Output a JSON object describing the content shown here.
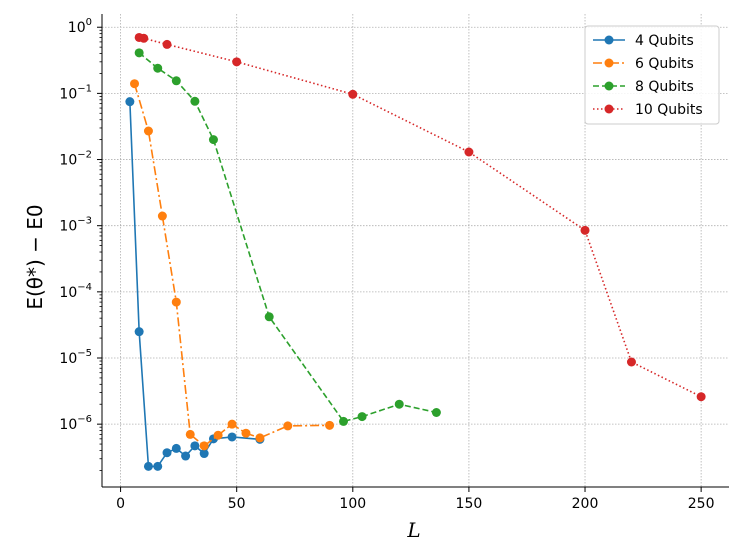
{
  "chart_data": {
    "type": "line",
    "title": "",
    "xlabel": "L",
    "ylabel": "E(θ*) − E0",
    "xlim": [
      -8,
      262
    ],
    "ylim_log10": [
      -6.95,
      0.2
    ],
    "log_y": true,
    "x_ticks": [
      0,
      50,
      100,
      150,
      200,
      250
    ],
    "y_ticks": [
      {
        "exp": 0,
        "base": "10",
        "sup": "0"
      },
      {
        "exp": -1,
        "base": "10",
        "sup": "−1"
      },
      {
        "exp": -2,
        "base": "10",
        "sup": "−2"
      },
      {
        "exp": -3,
        "base": "10",
        "sup": "−3"
      },
      {
        "exp": -4,
        "base": "10",
        "sup": "−4"
      },
      {
        "exp": -5,
        "base": "10",
        "sup": "−5"
      },
      {
        "exp": -6,
        "base": "10",
        "sup": "−6"
      }
    ],
    "grid": true,
    "legend_position": "top-right",
    "series": [
      {
        "name": "4 Qubits",
        "color": "#1f77b4",
        "dash": "solid",
        "x": [
          4,
          8,
          12,
          16,
          20,
          24,
          28,
          32,
          36,
          40,
          48,
          60
        ],
        "y": [
          0.075,
          2.5e-05,
          2.3e-07,
          2.3e-07,
          3.7e-07,
          4.3e-07,
          3.3e-07,
          4.7e-07,
          3.6e-07,
          6e-07,
          6.4e-07,
          5.9e-07
        ]
      },
      {
        "name": "6 Qubits",
        "color": "#ff7f0e",
        "dash": "dashdot",
        "x": [
          6,
          12,
          18,
          24,
          30,
          36,
          42,
          48,
          54,
          60,
          72,
          90
        ],
        "y": [
          0.14,
          0.027,
          0.0014,
          7e-05,
          7e-07,
          4.7e-07,
          6.8e-07,
          1e-06,
          7.3e-07,
          6.2e-07,
          9.4e-07,
          9.6e-07
        ]
      },
      {
        "name": "8 Qubits",
        "color": "#2ca02c",
        "dash": "dashed",
        "x": [
          8,
          16,
          24,
          32,
          40,
          64,
          96,
          104,
          120,
          136
        ],
        "y": [
          0.41,
          0.24,
          0.155,
          0.076,
          0.02,
          4.2e-05,
          1.1e-06,
          1.3e-06,
          2e-06,
          1.5e-06
        ]
      },
      {
        "name": "10 Qubits",
        "color": "#d62728",
        "dash": "dotted",
        "x": [
          8,
          10,
          20,
          50,
          100,
          150,
          200,
          220,
          250
        ],
        "y": [
          0.7,
          0.68,
          0.55,
          0.3,
          0.097,
          0.013,
          0.00085,
          8.7e-06,
          2.6e-06
        ]
      }
    ]
  },
  "labels": {
    "xlabel": "L",
    "ylabel_main": "E(θ*) − E0"
  }
}
